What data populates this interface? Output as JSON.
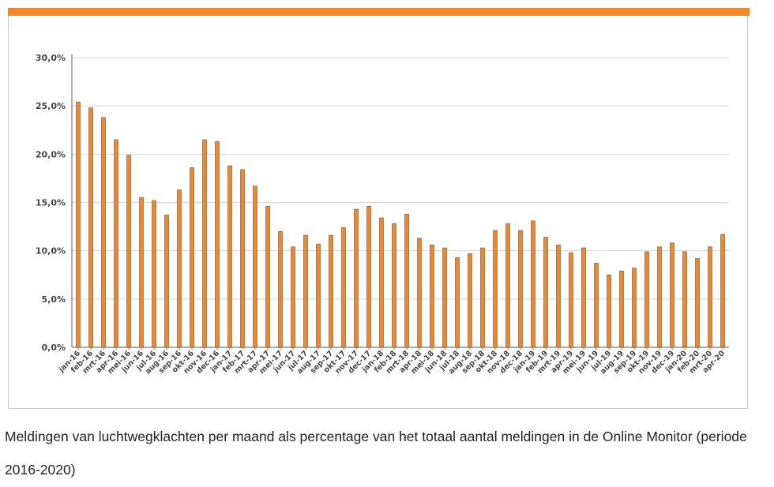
{
  "colors": {
    "accent": "#f0892d",
    "bar": "#e9893a",
    "bar_edge": "#8a4a12"
  },
  "caption": "Meldingen van luchtwegklachten per maand als percentage van het totaal aantal meldingen in de Online Monitor (periode 2016-2020)",
  "chart_data": {
    "type": "bar",
    "title": "",
    "xlabel": "",
    "ylabel": "",
    "ylim": [
      0,
      30
    ],
    "grid": true,
    "yticks": [
      "0,0%",
      "5,0%",
      "10,0%",
      "15,0%",
      "20,0%",
      "25,0%",
      "30,0%"
    ],
    "categories": [
      "jan-16",
      "feb-16",
      "mrt-16",
      "apr-16",
      "mei-16",
      "jun-16",
      "jul-16",
      "aug-16",
      "sep-16",
      "okt-16",
      "nov-16",
      "dec-16",
      "jan-17",
      "feb-17",
      "mrt-17",
      "apr-17",
      "mei-17",
      "jun-17",
      "jul-17",
      "aug-17",
      "sep-17",
      "okt-17",
      "nov-17",
      "dec-17",
      "jan-18",
      "feb-18",
      "mrt-18",
      "apr-18",
      "mei-18",
      "jun-18",
      "jul-18",
      "aug-18",
      "sep-18",
      "okt-18",
      "nov-18",
      "dec-18",
      "jan-19",
      "feb-19",
      "mrt-19",
      "apr-19",
      "mei-19",
      "jun-19",
      "jul-19",
      "aug-19",
      "sep-19",
      "okt-19",
      "nov-19",
      "dec-19",
      "jan-20",
      "feb-20",
      "mrt-20",
      "apr-20"
    ],
    "values": [
      25.4,
      24.8,
      23.8,
      21.5,
      19.9,
      15.5,
      15.2,
      13.7,
      16.3,
      18.6,
      21.5,
      21.3,
      18.8,
      18.4,
      16.7,
      14.6,
      12.0,
      10.4,
      11.6,
      10.7,
      11.6,
      12.4,
      14.3,
      14.6,
      13.4,
      12.8,
      13.8,
      11.3,
      10.6,
      10.3,
      9.3,
      9.7,
      10.3,
      12.1,
      12.8,
      12.1,
      13.1,
      11.4,
      10.6,
      9.8,
      10.3,
      8.7,
      7.5,
      7.9,
      8.2,
      9.9,
      10.4,
      10.8,
      9.9,
      9.2,
      10.4,
      11.7
    ]
  }
}
